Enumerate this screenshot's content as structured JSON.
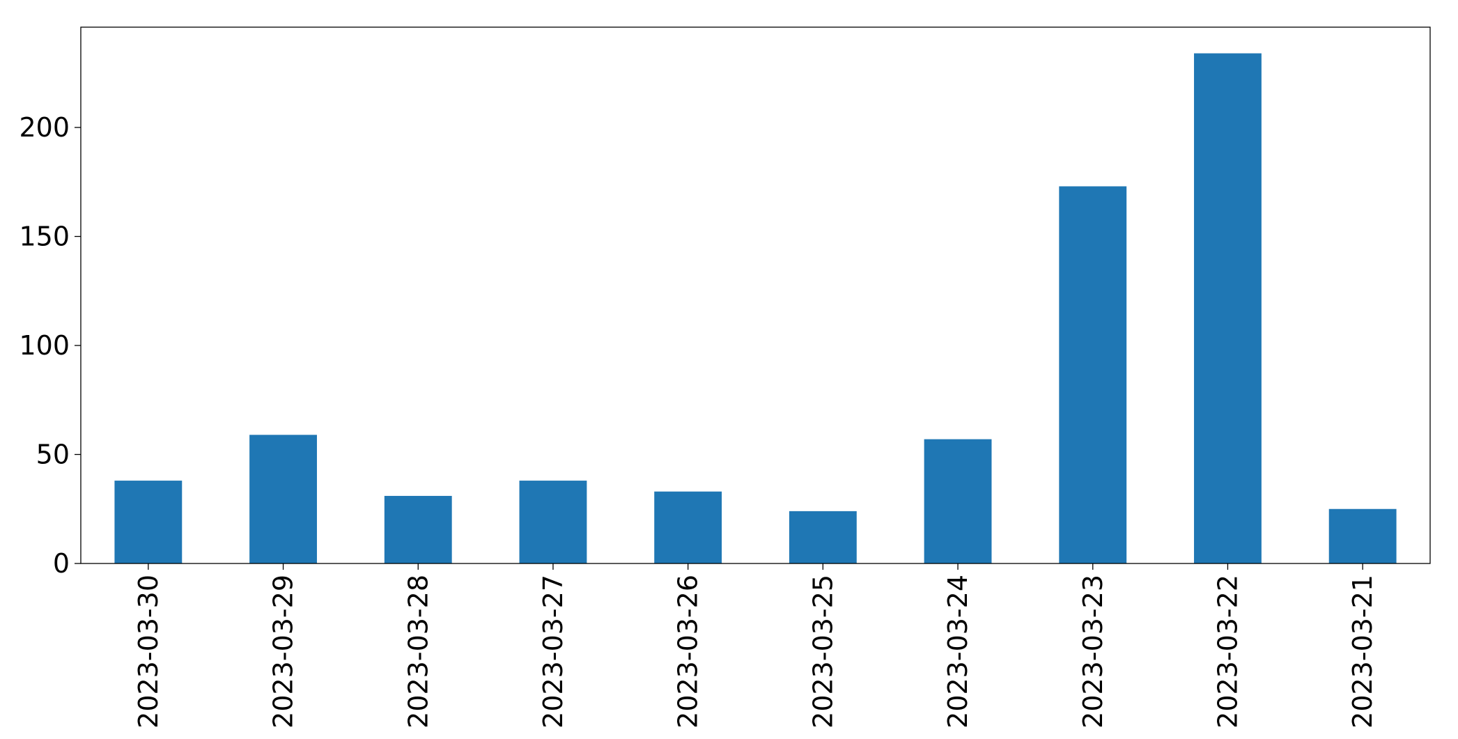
{
  "chart_data": {
    "type": "bar",
    "categories": [
      "2023-03-30",
      "2023-03-29",
      "2023-03-28",
      "2023-03-27",
      "2023-03-26",
      "2023-03-25",
      "2023-03-24",
      "2023-03-23",
      "2023-03-22",
      "2023-03-21"
    ],
    "values": [
      38,
      59,
      31,
      38,
      33,
      24,
      57,
      173,
      234,
      25
    ],
    "color": "#1f77b4",
    "ylim": [
      0,
      246
    ],
    "yticks": [
      0,
      50,
      100,
      150,
      200
    ],
    "grid": false
  }
}
